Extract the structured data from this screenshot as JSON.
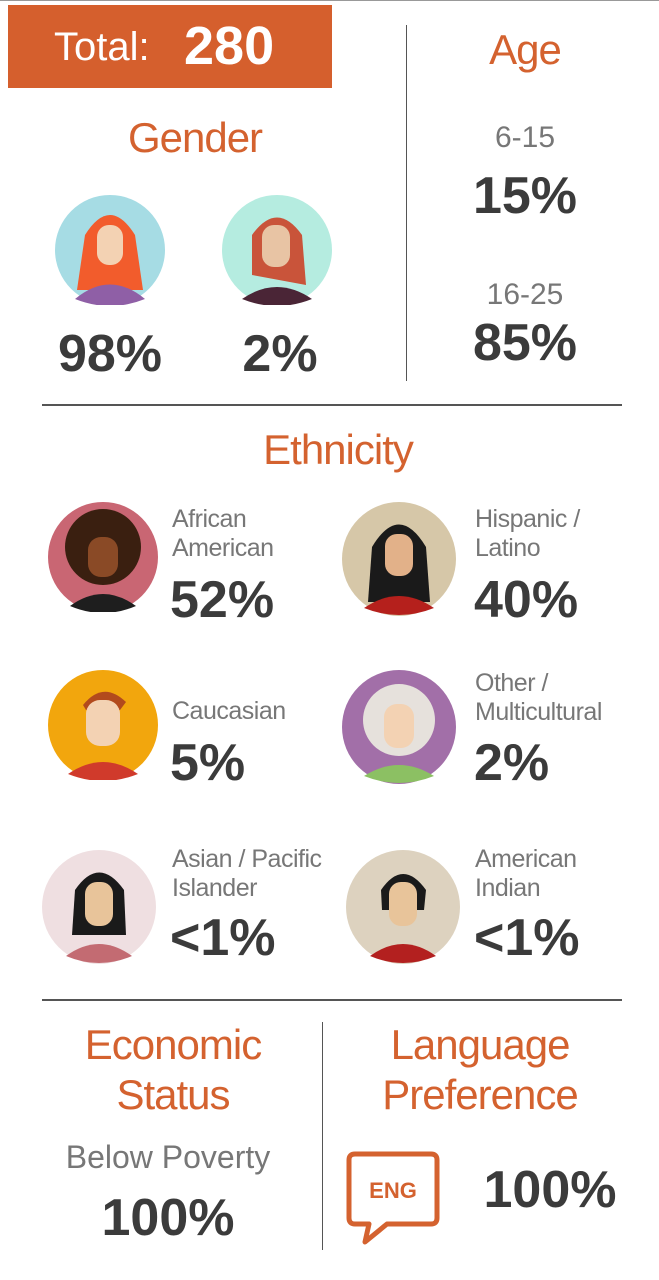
{
  "total": {
    "label": "Total:",
    "value": "280"
  },
  "gender": {
    "title": "Gender",
    "groups": [
      {
        "percent": "98%"
      },
      {
        "percent": "2%"
      }
    ]
  },
  "age": {
    "title": "Age",
    "groups": [
      {
        "range": "6-15",
        "percent": "15%"
      },
      {
        "range": "16-25",
        "percent": "85%"
      }
    ]
  },
  "ethnicity": {
    "title": "Ethnicity",
    "groups": [
      {
        "label": "African American",
        "percent": "52%"
      },
      {
        "label": "Hispanic / Latino",
        "percent": "40%"
      },
      {
        "label": "Caucasian",
        "percent": "5%"
      },
      {
        "label": "Other / Multicultural",
        "percent": "2%"
      },
      {
        "label": "Asian / Pacific Islander",
        "percent": "<1%"
      },
      {
        "label": "American Indian",
        "percent": "<1%"
      }
    ]
  },
  "economic_status": {
    "title": "Economic Status",
    "label": "Below Poverty",
    "percent": "100%"
  },
  "language_preference": {
    "title": "Language Preference",
    "icon_label": "ENG",
    "percent": "100%"
  }
}
